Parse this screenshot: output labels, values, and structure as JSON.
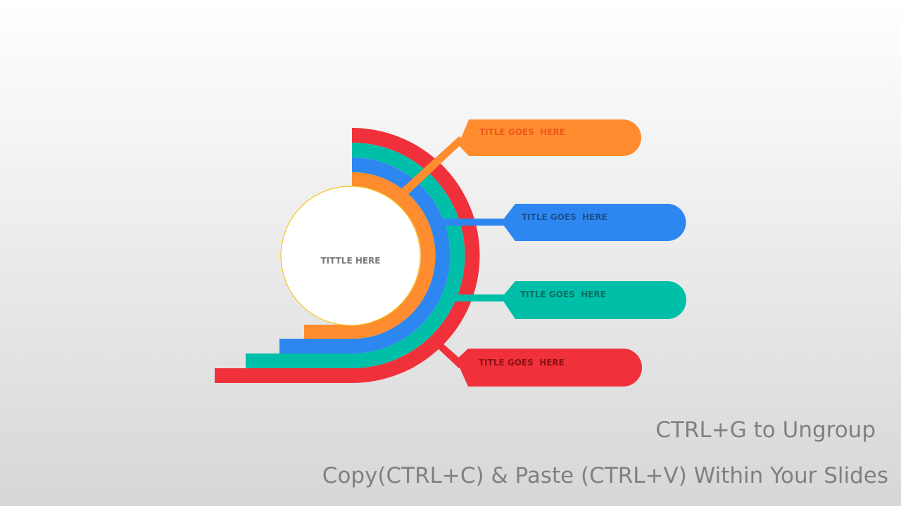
{
  "diagram": {
    "center_title": "TITTLE HERE",
    "callouts": [
      {
        "id": "orange",
        "label": "TITLE GOES  HERE",
        "color": "#FF8C2E",
        "text_color": "#F0561E"
      },
      {
        "id": "blue",
        "label": "TITLE GOES  HERE",
        "color": "#2E87F0",
        "text_color": "#1A4F8F"
      },
      {
        "id": "teal",
        "label": "TITLE GOES  HERE",
        "color": "#00BFA8",
        "text_color": "#0B6F63"
      },
      {
        "id": "red",
        "label": "TITLE GOES  HERE",
        "color": "#F0303A",
        "text_color": "#8C1116"
      }
    ],
    "center_border_color": "#F5C518"
  },
  "footer": {
    "line1": "CTRL+G to Ungroup",
    "line2": "Copy(CTRL+C) & Paste (CTRL+V) Within Your Slides"
  }
}
